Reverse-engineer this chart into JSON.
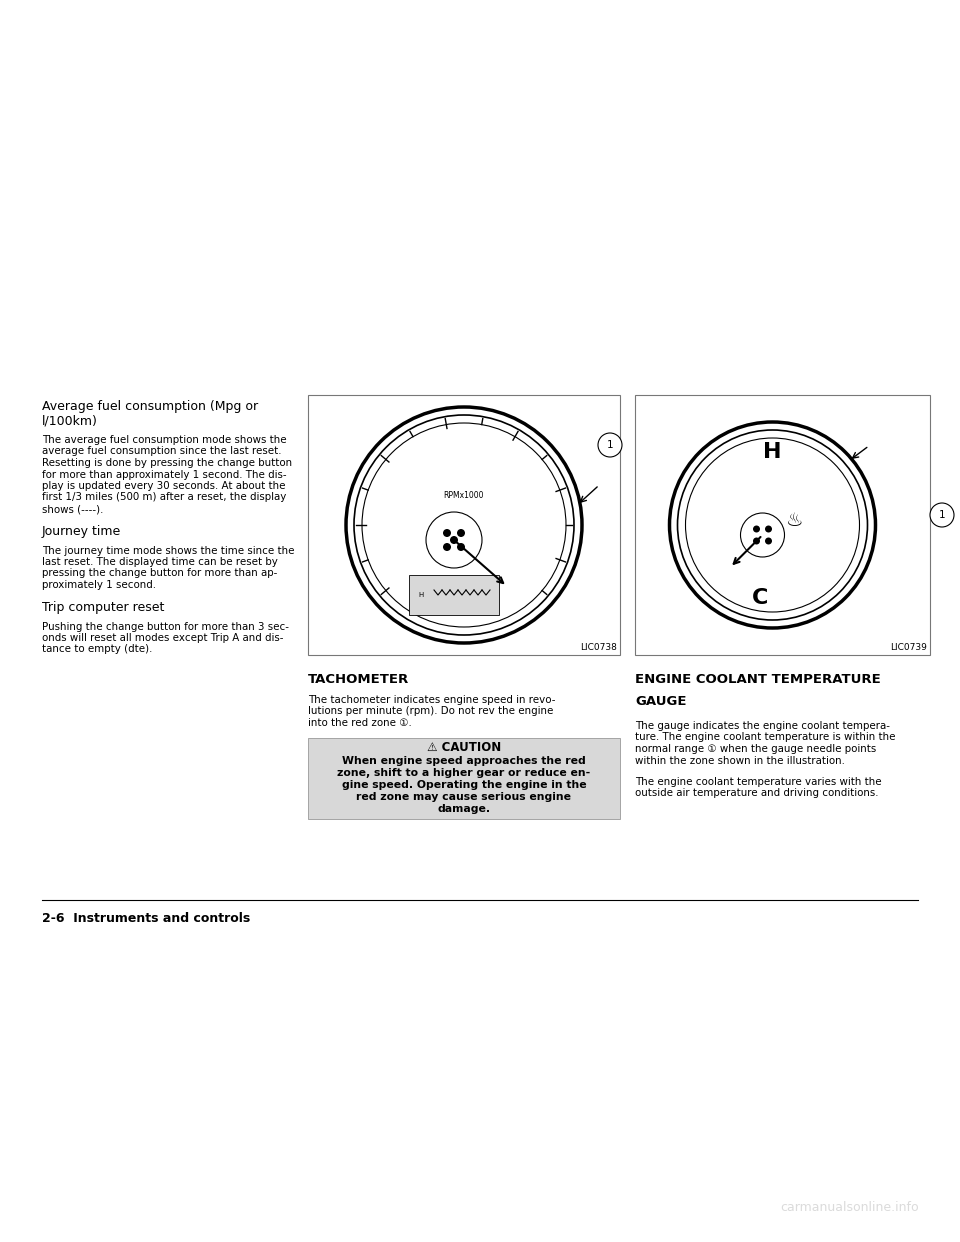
{
  "bg_color": "#ffffff",
  "page_width": 9.6,
  "page_height": 12.42,
  "watermark_text": "carmanualsonline.info",
  "watermark_color": "#cccccc",
  "footer_text": "2-6  Instruments and controls",
  "section1_heading": "Average fuel consumption (Mpg or\nl/100km)",
  "section1_body_lines": [
    "The average fuel consumption mode shows the",
    "average fuel consumption since the last reset.",
    "Resetting is done by pressing the change button",
    "for more than approximately 1 second. The dis-",
    "play is updated every 30 seconds. At about the",
    "first 1/3 miles (500 m) after a reset, the display",
    "shows (----)."
  ],
  "section2_heading": "Journey time",
  "section2_body_lines": [
    "The journey time mode shows the time since the",
    "last reset. The displayed time can be reset by",
    "pressing the change button for more than ap-",
    "proximately 1 second."
  ],
  "section3_heading": "Trip computer reset",
  "section3_body_lines": [
    "Pushing the change button for more than 3 sec-",
    "onds will reset all modes except Trip A and dis-",
    "tance to empty (dte)."
  ],
  "mid_image_label": "LIC0738",
  "mid_caption": "TACHOMETER",
  "mid_body_lines": [
    "The tachometer indicates engine speed in revo-",
    "lutions per minute (rpm). Do not rev the engine",
    "into the red zone ①."
  ],
  "caution_heading": "⚠ CAUTION",
  "caution_body_lines": [
    "When engine speed approaches the red",
    "zone, shift to a higher gear or reduce en-",
    "gine speed. Operating the engine in the",
    "red zone may cause serious engine",
    "damage."
  ],
  "right_image_label": "LIC0739",
  "right_caption_lines": [
    "ENGINE COOLANT TEMPERATURE",
    "GAUGE"
  ],
  "right_body1_lines": [
    "The gauge indicates the engine coolant tempera-",
    "ture. The engine coolant temperature is within the",
    "normal range ① when the gauge needle points",
    "within the zone shown in the illustration."
  ],
  "right_body2_lines": [
    "The engine coolant temperature varies with the",
    "outside air temperature and driving conditions."
  ]
}
